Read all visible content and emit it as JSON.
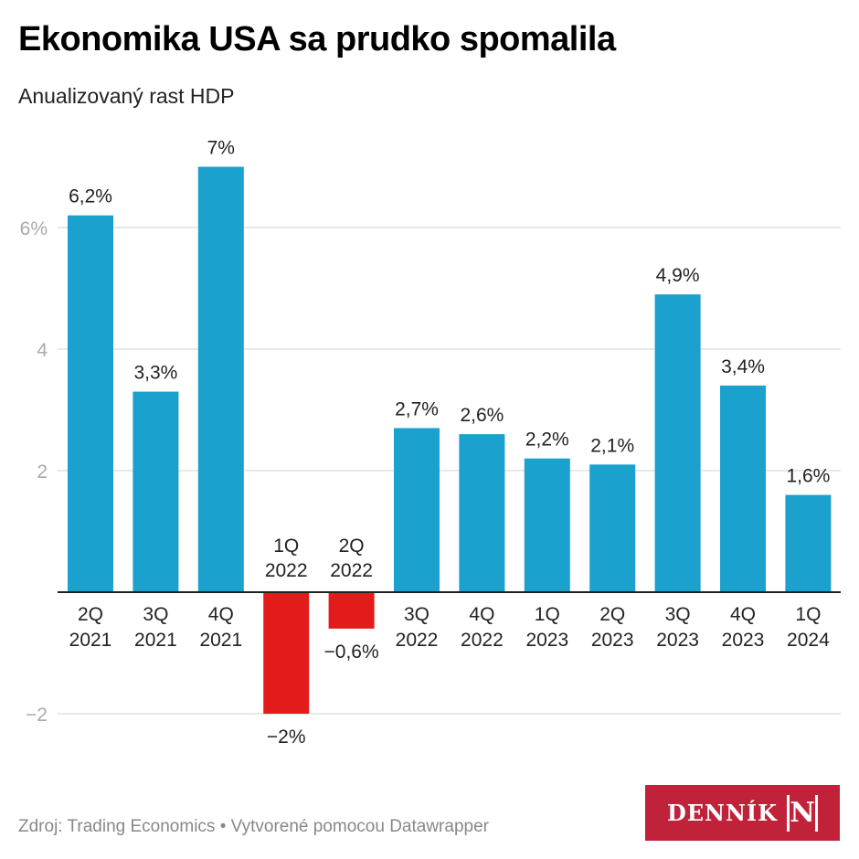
{
  "header": {
    "title": "Ekonomika USA sa prudko spomalila",
    "subtitle": "Anualizovaný rast HDP"
  },
  "footer": {
    "source": "Zdroj: Trading Economics • Vytvorené pomocou Datawrapper",
    "logo_text": "DENNÍK",
    "logo_mark": "N"
  },
  "colors": {
    "positive": "#1aa1cd",
    "negative": "#e31b1b",
    "grid": "#e0e0e0",
    "axis": "#222222",
    "tick_label": "#aaaaaa",
    "logo_bg": "#c0223a"
  },
  "chart_data": {
    "type": "bar",
    "title": "Ekonomika USA sa prudko spomalila",
    "subtitle": "Anualizovaný rast HDP",
    "xlabel": "",
    "ylabel": "",
    "categories": [
      [
        "2Q",
        "2021"
      ],
      [
        "3Q",
        "2021"
      ],
      [
        "4Q",
        "2021"
      ],
      [
        "1Q",
        "2022"
      ],
      [
        "2Q",
        "2022"
      ],
      [
        "3Q",
        "2022"
      ],
      [
        "4Q",
        "2022"
      ],
      [
        "1Q",
        "2023"
      ],
      [
        "2Q",
        "2023"
      ],
      [
        "3Q",
        "2023"
      ],
      [
        "4Q",
        "2023"
      ],
      [
        "1Q",
        "2024"
      ]
    ],
    "values": [
      6.2,
      3.3,
      7.0,
      -2.0,
      -0.6,
      2.7,
      2.6,
      2.2,
      2.1,
      4.9,
      3.4,
      1.6
    ],
    "value_labels": [
      "6,2%",
      "3,3%",
      "7%",
      "−2%",
      "−0,6%",
      "2,7%",
      "2,6%",
      "2,2%",
      "2,1%",
      "4,9%",
      "3,4%",
      "1,6%"
    ],
    "yticks": [
      {
        "value": 6,
        "label": "6%"
      },
      {
        "value": 4,
        "label": "4"
      },
      {
        "value": 2,
        "label": "2"
      },
      {
        "value": -2,
        "label": "−2"
      }
    ],
    "ylim": [
      -2,
      7
    ],
    "grid": true,
    "legend": "none"
  }
}
